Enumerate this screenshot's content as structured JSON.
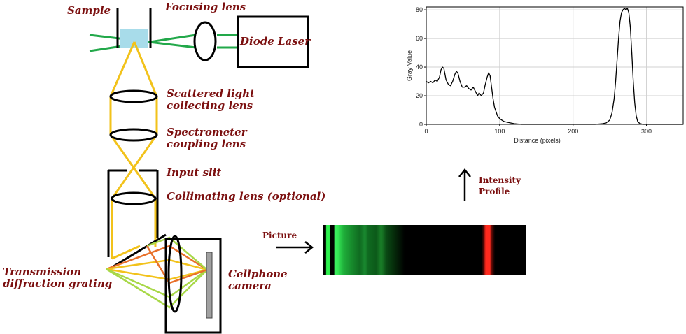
{
  "labels": {
    "sample": "Sample",
    "focusing_lens": "Focusing lens",
    "diode_laser": "Diode Laser",
    "scattered_line1": "Scattered light",
    "scattered_line2": "collecting lens",
    "spectrometer_line1": "Spectrometer",
    "spectrometer_line2": "coupling lens",
    "input_slit": "Input slit",
    "collimating": "Collimating lens (optional)",
    "transmission_line1": "Transmission",
    "transmission_line2": "diffraction grating",
    "cellphone_line1": "Cellphone",
    "cellphone_line2": "camera",
    "picture": "Picture",
    "intensity_line1": "Intensity",
    "intensity_line2": "Profile"
  },
  "colors": {
    "label": "#7b0f0f",
    "laser_beam": "#22a84a",
    "scattered_light": "#f2c21a",
    "cuvette_liquid": "#a8dcea",
    "red_ray": "#e8702a",
    "orange_ray": "#f2c21a",
    "green_ray": "#a8d848",
    "spectrum_green": "#2ee64a",
    "spectrum_red": "#ff2a1e"
  },
  "chart_data": {
    "type": "line",
    "title": "",
    "xlabel": "Distance (pixels)",
    "ylabel": "Gray Value",
    "xlim": [
      0,
      350
    ],
    "ylim": [
      0,
      82
    ],
    "xticks": [
      0,
      100,
      200,
      300
    ],
    "yticks": [
      0,
      20,
      40,
      60,
      80
    ],
    "grid": true,
    "series": [
      {
        "x": [
          0,
          3,
          6,
          9,
          12,
          15,
          18,
          20,
          22,
          24,
          27,
          30,
          33,
          36,
          39,
          41,
          43,
          46,
          49,
          52,
          55,
          58,
          61,
          64,
          67,
          70,
          72,
          75,
          78,
          80,
          83,
          85,
          87,
          89,
          91,
          93,
          95,
          97,
          100,
          103,
          106,
          110,
          115,
          120,
          130,
          150,
          180,
          210,
          230,
          240,
          245,
          250,
          253,
          256,
          258,
          260,
          262,
          264,
          266,
          268,
          270,
          272,
          274,
          276,
          278,
          280,
          282,
          284,
          286,
          288,
          290,
          292,
          295,
          300,
          310,
          330,
          350
        ],
        "y": [
          30,
          29,
          30,
          29,
          31,
          30,
          33,
          38,
          40,
          39,
          31,
          28,
          27,
          30,
          35,
          37,
          36,
          30,
          26,
          26,
          27,
          25,
          24,
          26,
          23,
          20,
          22,
          20,
          22,
          27,
          33,
          36,
          34,
          26,
          18,
          12,
          9,
          6,
          4,
          3,
          2,
          1.5,
          1,
          0.5,
          0,
          0,
          0,
          0,
          0,
          0.5,
          1,
          3,
          8,
          18,
          30,
          45,
          60,
          72,
          78,
          80,
          81,
          80,
          81,
          78,
          68,
          50,
          30,
          15,
          6,
          2,
          1,
          0.5,
          0,
          0,
          0,
          0,
          0
        ]
      }
    ]
  }
}
